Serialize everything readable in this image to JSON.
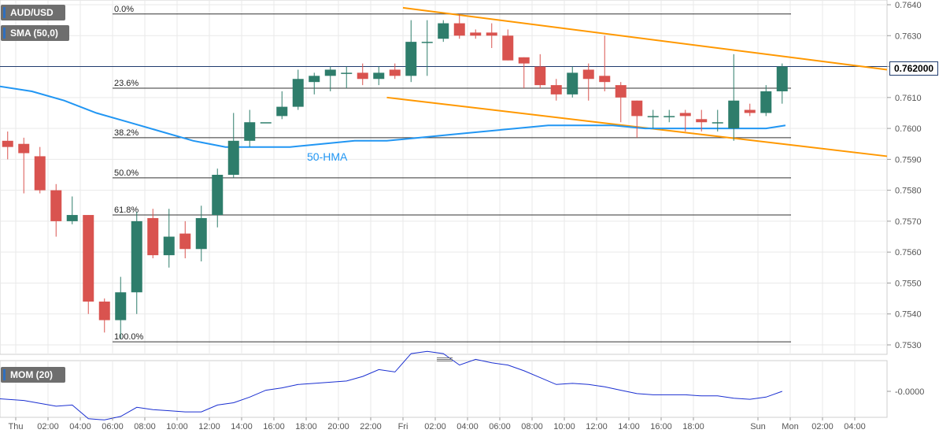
{
  "colors": {
    "up": "#2e7d6b",
    "down": "#d9534f",
    "hma": "#2196f3",
    "mom": "#1a2fd1",
    "channel": "#ff9800",
    "grid": "#e9e9e9",
    "fib": "#333333",
    "axis_text": "#555555"
  },
  "labels": {
    "symbol": "AUD/USD",
    "indicator": "SMA (50,0)",
    "hma_label": "50-HMA",
    "momentum": "MOM (20)",
    "current_price": "0.762000"
  },
  "chart_data": [
    {
      "type": "candlestick",
      "title": "AUD/USD",
      "ylim": [
        0.7528,
        0.7642
      ],
      "y_ticks": [
        "0.7640",
        "0.7630",
        "0.7620",
        "0.7610",
        "0.7600",
        "0.7590",
        "0.7580",
        "0.7570",
        "0.7560",
        "0.7550",
        "0.7540",
        "0.7530"
      ],
      "x_ticks": [
        "Thu",
        "02:00",
        "04:00",
        "06:00",
        "08:00",
        "10:00",
        "12:00",
        "14:00",
        "16:00",
        "18:00",
        "20:00",
        "22:00",
        "Fri",
        "02:00",
        "04:00",
        "06:00",
        "08:00",
        "10:00",
        "12:00",
        "14:00",
        "16:00",
        "18:00",
        "Sun",
        "Mon",
        "02:00",
        "04:00"
      ],
      "x_tick_hours": [
        0,
        2,
        4,
        6,
        8,
        10,
        12,
        14,
        16,
        18,
        20,
        22,
        24,
        26,
        28,
        30,
        32,
        34,
        36,
        38,
        40,
        42,
        46,
        48,
        50,
        52
      ],
      "fibonacci": [
        {
          "label": "0.0%",
          "price": 0.7637
        },
        {
          "label": "23.6%",
          "price": 0.7613
        },
        {
          "label": "38.2%",
          "price": 0.7597
        },
        {
          "label": "50.0%",
          "price": 0.7584
        },
        {
          "label": "61.8%",
          "price": 0.7572
        },
        {
          "label": "100.0%",
          "price": 0.7531
        }
      ],
      "candles": [
        {
          "t": -0.5,
          "o": 0.7596,
          "h": 0.7599,
          "l": 0.759,
          "c": 0.7594
        },
        {
          "t": 0.5,
          "o": 0.7595,
          "h": 0.7597,
          "l": 0.7579,
          "c": 0.7592
        },
        {
          "t": 1.5,
          "o": 0.7591,
          "h": 0.7594,
          "l": 0.7579,
          "c": 0.758
        },
        {
          "t": 2.5,
          "o": 0.758,
          "h": 0.7582,
          "l": 0.7565,
          "c": 0.757
        },
        {
          "t": 3.5,
          "o": 0.757,
          "h": 0.7578,
          "l": 0.7569,
          "c": 0.7572
        },
        {
          "t": 4.5,
          "o": 0.7572,
          "h": 0.7572,
          "l": 0.754,
          "c": 0.7544
        },
        {
          "t": 5.5,
          "o": 0.7544,
          "h": 0.7545,
          "l": 0.7534,
          "c": 0.7538
        },
        {
          "t": 6.5,
          "o": 0.7538,
          "h": 0.7552,
          "l": 0.7532,
          "c": 0.7547
        },
        {
          "t": 7.5,
          "o": 0.7547,
          "h": 0.7573,
          "l": 0.754,
          "c": 0.757
        },
        {
          "t": 8.5,
          "o": 0.7571,
          "h": 0.7574,
          "l": 0.7558,
          "c": 0.7559
        },
        {
          "t": 9.5,
          "o": 0.7559,
          "h": 0.7574,
          "l": 0.7555,
          "c": 0.7565
        },
        {
          "t": 10.5,
          "o": 0.7566,
          "h": 0.757,
          "l": 0.7558,
          "c": 0.7561
        },
        {
          "t": 11.5,
          "o": 0.7561,
          "h": 0.7575,
          "l": 0.7557,
          "c": 0.7571
        },
        {
          "t": 12.5,
          "o": 0.7572,
          "h": 0.7587,
          "l": 0.7568,
          "c": 0.7585
        },
        {
          "t": 13.5,
          "o": 0.7585,
          "h": 0.7605,
          "l": 0.7584,
          "c": 0.7596
        },
        {
          "t": 14.5,
          "o": 0.7596,
          "h": 0.7606,
          "l": 0.7594,
          "c": 0.7602
        },
        {
          "t": 15.5,
          "o": 0.7602,
          "h": 0.7602,
          "l": 0.7602,
          "c": 0.7602
        },
        {
          "t": 16.5,
          "o": 0.7604,
          "h": 0.7612,
          "l": 0.7603,
          "c": 0.7607
        },
        {
          "t": 17.5,
          "o": 0.7607,
          "h": 0.7619,
          "l": 0.7606,
          "c": 0.7616
        },
        {
          "t": 18.5,
          "o": 0.7615,
          "h": 0.7618,
          "l": 0.7611,
          "c": 0.7617
        },
        {
          "t": 19.5,
          "o": 0.7617,
          "h": 0.762,
          "l": 0.7612,
          "c": 0.7619
        },
        {
          "t": 20.5,
          "o": 0.7618,
          "h": 0.762,
          "l": 0.7613,
          "c": 0.7618
        },
        {
          "t": 21.5,
          "o": 0.7618,
          "h": 0.7621,
          "l": 0.7614,
          "c": 0.7616
        },
        {
          "t": 22.5,
          "o": 0.7616,
          "h": 0.762,
          "l": 0.7614,
          "c": 0.7618
        },
        {
          "t": 23.5,
          "o": 0.7619,
          "h": 0.7621,
          "l": 0.7616,
          "c": 0.7617
        },
        {
          "t": 24.5,
          "o": 0.7617,
          "h": 0.7635,
          "l": 0.7615,
          "c": 0.7628
        },
        {
          "t": 25.5,
          "o": 0.7628,
          "h": 0.7635,
          "l": 0.7617,
          "c": 0.7628
        },
        {
          "t": 26.5,
          "o": 0.7629,
          "h": 0.7635,
          "l": 0.7628,
          "c": 0.7634
        },
        {
          "t": 27.5,
          "o": 0.7634,
          "h": 0.7637,
          "l": 0.7629,
          "c": 0.763
        },
        {
          "t": 28.5,
          "o": 0.7631,
          "h": 0.7632,
          "l": 0.7629,
          "c": 0.763
        },
        {
          "t": 29.5,
          "o": 0.7631,
          "h": 0.7634,
          "l": 0.7626,
          "c": 0.763
        },
        {
          "t": 30.5,
          "o": 0.763,
          "h": 0.7632,
          "l": 0.7622,
          "c": 0.7622
        },
        {
          "t": 31.5,
          "o": 0.7623,
          "h": 0.7623,
          "l": 0.7613,
          "c": 0.7621
        },
        {
          "t": 32.5,
          "o": 0.762,
          "h": 0.7624,
          "l": 0.7613,
          "c": 0.7614
        },
        {
          "t": 33.5,
          "o": 0.7614,
          "h": 0.7616,
          "l": 0.7609,
          "c": 0.7611
        },
        {
          "t": 34.5,
          "o": 0.7611,
          "h": 0.762,
          "l": 0.761,
          "c": 0.7618
        },
        {
          "t": 35.5,
          "o": 0.7619,
          "h": 0.7621,
          "l": 0.7609,
          "c": 0.7616
        },
        {
          "t": 36.5,
          "o": 0.7617,
          "h": 0.763,
          "l": 0.7612,
          "c": 0.7615
        },
        {
          "t": 37.5,
          "o": 0.7614,
          "h": 0.7615,
          "l": 0.7602,
          "c": 0.761
        },
        {
          "t": 38.5,
          "o": 0.7609,
          "h": 0.7609,
          "l": 0.7597,
          "c": 0.7604
        },
        {
          "t": 39.5,
          "o": 0.7604,
          "h": 0.7606,
          "l": 0.76,
          "c": 0.7604
        },
        {
          "t": 40.5,
          "o": 0.7604,
          "h": 0.7606,
          "l": 0.7602,
          "c": 0.7604
        },
        {
          "t": 41.5,
          "o": 0.7605,
          "h": 0.7606,
          "l": 0.7599,
          "c": 0.7604
        },
        {
          "t": 42.5,
          "o": 0.7603,
          "h": 0.7606,
          "l": 0.7599,
          "c": 0.7602
        },
        {
          "t": 43.5,
          "o": 0.7602,
          "h": 0.7606,
          "l": 0.7599,
          "c": 0.7602
        },
        {
          "t": 44.5,
          "o": 0.76,
          "h": 0.7624,
          "l": 0.7596,
          "c": 0.7609
        },
        {
          "t": 45.5,
          "o": 0.7606,
          "h": 0.7608,
          "l": 0.7604,
          "c": 0.7605
        },
        {
          "t": 46.5,
          "o": 0.7605,
          "h": 0.7614,
          "l": 0.7604,
          "c": 0.7612
        },
        {
          "t": 47.5,
          "o": 0.7612,
          "h": 0.7621,
          "l": 0.7608,
          "c": 0.762
        }
      ],
      "hma_series": [
        {
          "t": -1.5,
          "v": 0.7614
        },
        {
          "t": 1.0,
          "v": 0.7612
        },
        {
          "t": 3.0,
          "v": 0.7609
        },
        {
          "t": 5.0,
          "v": 0.7605
        },
        {
          "t": 7.0,
          "v": 0.7602
        },
        {
          "t": 9.0,
          "v": 0.7599
        },
        {
          "t": 11.0,
          "v": 0.7596
        },
        {
          "t": 13.0,
          "v": 0.7594
        },
        {
          "t": 15.0,
          "v": 0.7594
        },
        {
          "t": 17.0,
          "v": 0.7594
        },
        {
          "t": 19.0,
          "v": 0.7595
        },
        {
          "t": 21.0,
          "v": 0.7596
        },
        {
          "t": 23.0,
          "v": 0.7596
        },
        {
          "t": 25.0,
          "v": 0.7597
        },
        {
          "t": 27.0,
          "v": 0.7598
        },
        {
          "t": 29.0,
          "v": 0.7599
        },
        {
          "t": 31.0,
          "v": 0.76
        },
        {
          "t": 33.0,
          "v": 0.7601
        },
        {
          "t": 35.0,
          "v": 0.7601
        },
        {
          "t": 37.0,
          "v": 0.7601
        },
        {
          "t": 39.0,
          "v": 0.76
        },
        {
          "t": 41.0,
          "v": 0.76
        },
        {
          "t": 43.0,
          "v": 0.76
        },
        {
          "t": 45.0,
          "v": 0.76
        },
        {
          "t": 46.5,
          "v": 0.76
        },
        {
          "t": 47.7,
          "v": 0.7601
        }
      ],
      "channel_lines": [
        {
          "t1": 24.0,
          "v1": 0.7639,
          "t2": 54.0,
          "v2": 0.7619
        },
        {
          "t1": 23.0,
          "v1": 0.761,
          "t2": 54.0,
          "v2": 0.7591
        }
      ]
    },
    {
      "type": "line",
      "title": "MOM (20)",
      "y_tick": "-0.0000",
      "values": [
        {
          "t": -1.5,
          "v": -0.0006
        },
        {
          "t": 0.5,
          "v": -0.0008
        },
        {
          "t": 2.5,
          "v": -0.0013
        },
        {
          "t": 3.5,
          "v": -0.0012
        },
        {
          "t": 4.5,
          "v": -0.0024
        },
        {
          "t": 5.5,
          "v": -0.0025
        },
        {
          "t": 6.5,
          "v": -0.0022
        },
        {
          "t": 7.5,
          "v": -0.0014
        },
        {
          "t": 8.5,
          "v": -0.0016
        },
        {
          "t": 9.5,
          "v": -0.0017
        },
        {
          "t": 10.5,
          "v": -0.0018
        },
        {
          "t": 11.5,
          "v": -0.0018
        },
        {
          "t": 12.5,
          "v": -0.0012
        },
        {
          "t": 13.5,
          "v": -0.001
        },
        {
          "t": 14.5,
          "v": -0.0005
        },
        {
          "t": 15.5,
          "v": 0.0001
        },
        {
          "t": 16.5,
          "v": 0.0003
        },
        {
          "t": 17.5,
          "v": 0.0006
        },
        {
          "t": 18.5,
          "v": 0.0007
        },
        {
          "t": 19.5,
          "v": 0.0008
        },
        {
          "t": 20.5,
          "v": 0.0009
        },
        {
          "t": 21.5,
          "v": 0.0013
        },
        {
          "t": 22.5,
          "v": 0.0019
        },
        {
          "t": 23.5,
          "v": 0.0017
        },
        {
          "t": 24.5,
          "v": 0.0033
        },
        {
          "t": 25.5,
          "v": 0.0035
        },
        {
          "t": 26.5,
          "v": 0.0033
        },
        {
          "t": 27.5,
          "v": 0.0023
        },
        {
          "t": 28.5,
          "v": 0.0028
        },
        {
          "t": 29.5,
          "v": 0.0025
        },
        {
          "t": 30.5,
          "v": 0.0023
        },
        {
          "t": 31.5,
          "v": 0.0018
        },
        {
          "t": 32.5,
          "v": 0.0012
        },
        {
          "t": 33.5,
          "v": 0.0006
        },
        {
          "t": 34.5,
          "v": 0.0007
        },
        {
          "t": 35.5,
          "v": 0.0006
        },
        {
          "t": 36.5,
          "v": 0.0004
        },
        {
          "t": 37.5,
          "v": 0.0001
        },
        {
          "t": 38.5,
          "v": -0.0002
        },
        {
          "t": 39.5,
          "v": -0.0003
        },
        {
          "t": 40.5,
          "v": -0.0003
        },
        {
          "t": 41.5,
          "v": -0.0003
        },
        {
          "t": 42.5,
          "v": -0.0004
        },
        {
          "t": 43.5,
          "v": -0.0004
        },
        {
          "t": 44.5,
          "v": -0.0006
        },
        {
          "t": 45.5,
          "v": -0.0007
        },
        {
          "t": 46.5,
          "v": -0.0005
        },
        {
          "t": 47.5,
          "v": 0.0
        }
      ],
      "ylim": [
        -0.003,
        0.004
      ]
    }
  ]
}
